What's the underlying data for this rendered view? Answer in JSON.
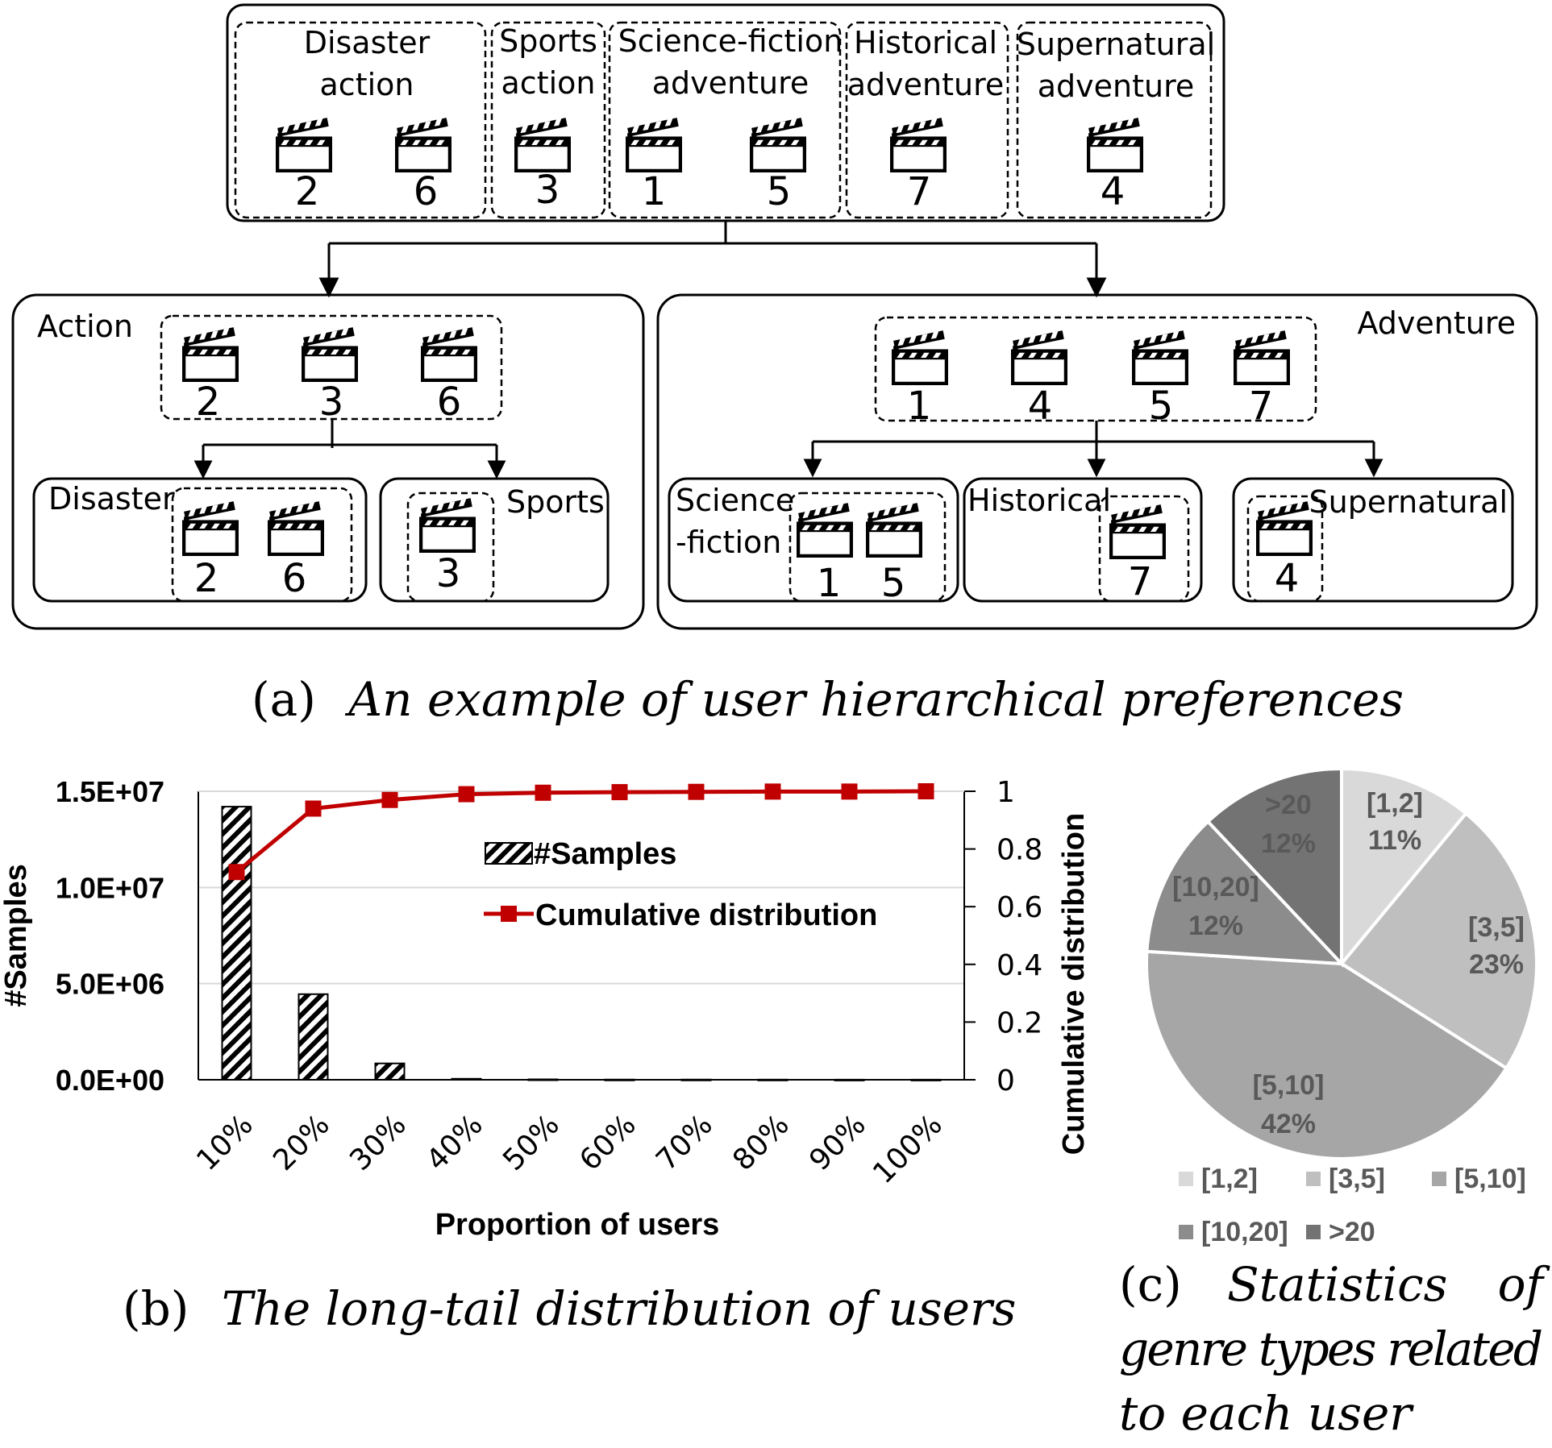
{
  "diagram": {
    "top_groups": [
      {
        "label_lines": [
          "Disaster",
          "action"
        ],
        "movies": [
          "2",
          "6"
        ]
      },
      {
        "label_lines": [
          "Sports",
          "action"
        ],
        "movies": [
          "3"
        ]
      },
      {
        "label_lines": [
          "Science-fiction",
          "adventure"
        ],
        "movies": [
          "1",
          "5"
        ]
      },
      {
        "label_lines": [
          "Historical",
          "adventure"
        ],
        "movies": [
          "7"
        ]
      },
      {
        "label_lines": [
          "Supernatural",
          "adventure"
        ],
        "movies": [
          "4"
        ]
      }
    ],
    "action": {
      "label": "Action",
      "movies": [
        "2",
        "3",
        "6"
      ],
      "children": [
        {
          "label_lines": [
            "Disaster"
          ],
          "movies": [
            "2",
            "6"
          ]
        },
        {
          "label_lines": [
            "Sports"
          ],
          "movies": [
            "3"
          ]
        }
      ]
    },
    "adventure": {
      "label": "Adventure",
      "movies": [
        "1",
        "4",
        "5",
        "7"
      ],
      "children": [
        {
          "label_lines": [
            "Science",
            "-fiction"
          ],
          "movies": [
            "1",
            "5"
          ]
        },
        {
          "label_lines": [
            "Historical"
          ],
          "movies": [
            "7"
          ]
        },
        {
          "label_lines": [
            "Supernatural"
          ],
          "movies": [
            "4"
          ]
        }
      ]
    },
    "icon": "movie-clapperboard-icon"
  },
  "captions": {
    "a_tag": "(a)",
    "a_text": "An example of user hierarchical preferences",
    "b_tag": "(b)",
    "b_text": "The long-tail distribution of users",
    "c_tag": "(c)",
    "c_lines": [
      "Statistics",
      "of",
      "genre types related",
      "to each user"
    ]
  },
  "chart_data": [
    {
      "type": "bar",
      "categories": [
        "10%",
        "20%",
        "30%",
        "40%",
        "50%",
        "60%",
        "70%",
        "80%",
        "90%",
        "100%"
      ],
      "series": [
        {
          "name": "#Samples",
          "type": "bar",
          "axis": "left",
          "values": [
            14200000,
            4450000,
            850000,
            50000,
            20000,
            10000,
            10000,
            8000,
            5000,
            5000
          ]
        },
        {
          "name": "Cumulative distribution",
          "type": "line",
          "axis": "right",
          "values": [
            0.72,
            0.94,
            0.97,
            0.99,
            0.995,
            0.997,
            0.998,
            0.999,
            0.999,
            1.0
          ]
        }
      ],
      "xlabel": "Proportion of users",
      "ylabel": "#Samples",
      "y2label": "Cumulative distribution",
      "ylim": [
        0,
        15000000
      ],
      "y2lim": [
        0,
        1
      ],
      "yticks": [
        "0.0E+00",
        "5.0E+06",
        "1.0E+07",
        "1.5E+07"
      ],
      "y2ticks": [
        "0",
        "0.2",
        "0.4",
        "0.6",
        "0.8",
        "1"
      ],
      "grid": true,
      "legend": "inside-top-center",
      "colors": {
        "line": "#c00000",
        "bar_stripe": "#000000"
      }
    },
    {
      "type": "pie",
      "labels": [
        "[1,2]",
        "[3,5]",
        "[5,10]",
        "[10,20]",
        ">20"
      ],
      "values": [
        11,
        23,
        42,
        12,
        12
      ],
      "value_labels": [
        "11%",
        "23%",
        "42%",
        "12%",
        "12%"
      ],
      "colors": [
        "#d9d9d9",
        "#bfbfbf",
        "#a6a6a6",
        "#8c8c8c",
        "#737373"
      ],
      "legend": "bottom"
    }
  ]
}
